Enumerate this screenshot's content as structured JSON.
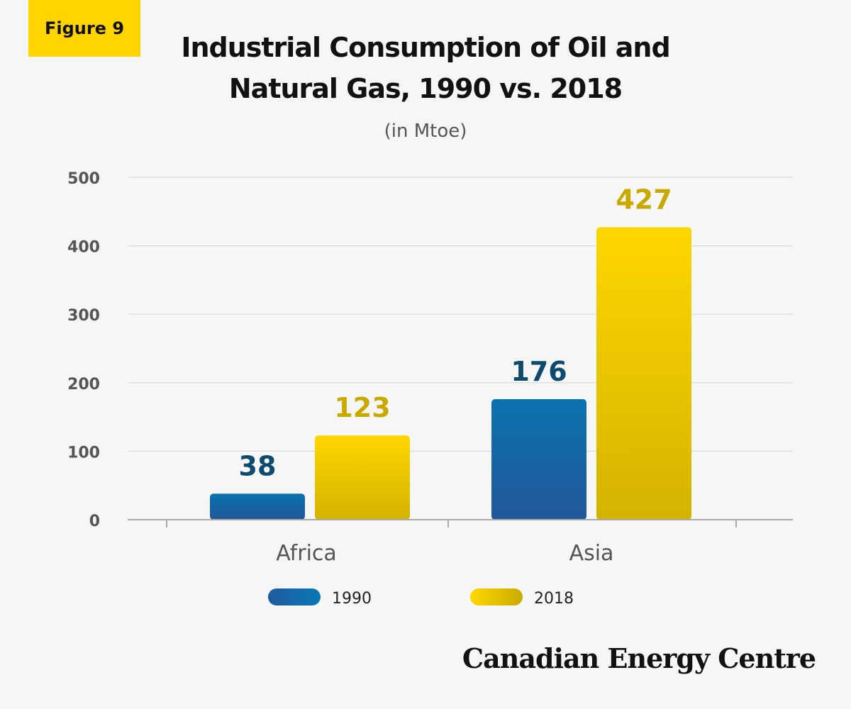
{
  "figure_label": "Figure 9",
  "title": "Industrial Consumption of Oil and\nNatural Gas, 1990 vs. 2018",
  "subtitle": "(in Mtoe)",
  "brand": "Canadian Energy Centre",
  "colors": {
    "series_1990": "#0a6aa6",
    "series_1990_label": "#0e4a6e",
    "series_2018": "#ffd400",
    "series_2018_label": "#c9a800",
    "grid": "#d9d9d9",
    "axis_text": "#555555",
    "badge": "#ffd400"
  },
  "chart_data": {
    "type": "bar",
    "categories": [
      "Africa",
      "Asia"
    ],
    "series": [
      {
        "name": "1990",
        "values": [
          38,
          176
        ]
      },
      {
        "name": "2018",
        "values": [
          123,
          427
        ]
      }
    ],
    "yticks": [
      0,
      100,
      200,
      300,
      400,
      500
    ],
    "ylim": [
      0,
      500
    ],
    "grid": true,
    "legend_position": "bottom"
  }
}
